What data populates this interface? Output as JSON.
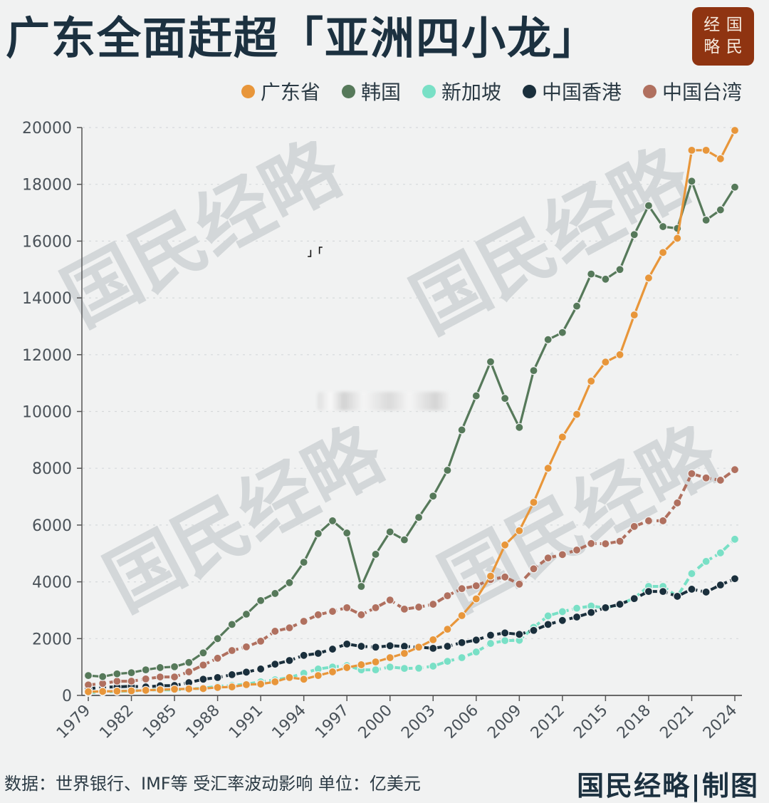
{
  "header": {
    "title": "广东全面赶超「亚洲四小龙」",
    "logo_chars": [
      "经",
      "国",
      "略",
      "民"
    ]
  },
  "legend": [
    {
      "label": "广东省",
      "color": "#e8963a"
    },
    {
      "label": "韩国",
      "color": "#56795a"
    },
    {
      "label": "新加坡",
      "color": "#79e0c6"
    },
    {
      "label": "中国香港",
      "color": "#1a2f3c"
    },
    {
      "label": "中国台湾",
      "color": "#b0705f"
    }
  ],
  "watermark": "国民经略",
  "footer": {
    "source": "数据：世界银行、IMF等 受汇率波动影响  单位：亿美元",
    "credit": "国民经略|制图"
  },
  "artifacts": {
    "bracket_glyph": "」「"
  },
  "chart_data": {
    "type": "line",
    "title": "广东全面赶超「亚洲四小龙」",
    "xlabel": "",
    "ylabel": "",
    "unit": "亿美元",
    "ylim": [
      0,
      20000
    ],
    "yticks": [
      0,
      2000,
      4000,
      6000,
      8000,
      10000,
      12000,
      14000,
      16000,
      18000,
      20000
    ],
    "xticks": [
      "1979",
      "1982",
      "1985",
      "1988",
      "1991",
      "1994",
      "1997",
      "2000",
      "2003",
      "2006",
      "2009",
      "2012",
      "2015",
      "2018",
      "2021",
      "2024"
    ],
    "grid": "horizontal dashed",
    "legend_position": "top-right",
    "x": [
      1979,
      1980,
      1981,
      1982,
      1983,
      1984,
      1985,
      1986,
      1987,
      1988,
      1989,
      1990,
      1991,
      1992,
      1993,
      1994,
      1995,
      1996,
      1997,
      1998,
      1999,
      2000,
      2001,
      2002,
      2003,
      2004,
      2005,
      2006,
      2007,
      2008,
      2009,
      2010,
      2011,
      2012,
      2013,
      2014,
      2015,
      2016,
      2017,
      2018,
      2019,
      2020,
      2021,
      2022,
      2023,
      2024
    ],
    "series": [
      {
        "name": "广东省",
        "color": "#e8963a",
        "dash": false,
        "values": [
          130,
          140,
          150,
          160,
          180,
          200,
          220,
          230,
          240,
          280,
          300,
          380,
          400,
          480,
          630,
          570,
          700,
          830,
          980,
          1080,
          1180,
          1330,
          1480,
          1700,
          1960,
          2330,
          2810,
          3400,
          4200,
          5300,
          5800,
          6800,
          8000,
          9100,
          9900,
          11070,
          11740,
          12000,
          13400,
          14700,
          15600,
          16100,
          19200,
          19200,
          18900,
          19900
        ]
      },
      {
        "name": "韩国",
        "color": "#56795a",
        "dash": false,
        "values": [
          700,
          660,
          760,
          800,
          900,
          980,
          1010,
          1160,
          1500,
          2000,
          2500,
          2860,
          3340,
          3590,
          3970,
          4690,
          5700,
          6150,
          5720,
          3840,
          4970,
          5760,
          5480,
          6270,
          7020,
          7930,
          9350,
          10550,
          11750,
          10460,
          9440,
          11440,
          12530,
          12780,
          13710,
          14840,
          14660,
          15000,
          16230,
          17250,
          16510,
          16450,
          18110,
          16740,
          17100,
          17900
        ]
      },
      {
        "name": "新加坡",
        "color": "#79e0c6",
        "dash": true,
        "values": [
          100,
          120,
          140,
          160,
          180,
          200,
          190,
          230,
          250,
          320,
          350,
          400,
          480,
          550,
          630,
          780,
          930,
          1000,
          1050,
          900,
          900,
          1000,
          950,
          960,
          1030,
          1200,
          1330,
          1530,
          1830,
          1930,
          1940,
          2400,
          2800,
          2950,
          3070,
          3150,
          3080,
          3200,
          3430,
          3840,
          3840,
          3490,
          4290,
          4720,
          5020,
          5500
        ]
      },
      {
        "name": "中国香港",
        "color": "#1a2f3c",
        "dash": true,
        "values": [
          230,
          290,
          300,
          320,
          300,
          340,
          350,
          450,
          570,
          630,
          730,
          820,
          930,
          1100,
          1230,
          1410,
          1480,
          1630,
          1810,
          1730,
          1700,
          1750,
          1730,
          1700,
          1660,
          1730,
          1860,
          1950,
          2120,
          2200,
          2150,
          2290,
          2500,
          2640,
          2760,
          2920,
          3090,
          3210,
          3410,
          3660,
          3660,
          3490,
          3740,
          3640,
          3890,
          4110
        ]
      },
      {
        "name": "中国台湾",
        "color": "#b0705f",
        "dash": true,
        "values": [
          370,
          420,
          500,
          500,
          580,
          650,
          650,
          830,
          1070,
          1310,
          1580,
          1710,
          1910,
          2260,
          2380,
          2610,
          2840,
          2960,
          3090,
          2840,
          3090,
          3360,
          3040,
          3110,
          3210,
          3510,
          3760,
          3860,
          4080,
          4170,
          3920,
          4460,
          4840,
          4960,
          5120,
          5350,
          5340,
          5430,
          5950,
          6150,
          6150,
          6780,
          7810,
          7660,
          7580,
          7950
        ]
      }
    ]
  }
}
